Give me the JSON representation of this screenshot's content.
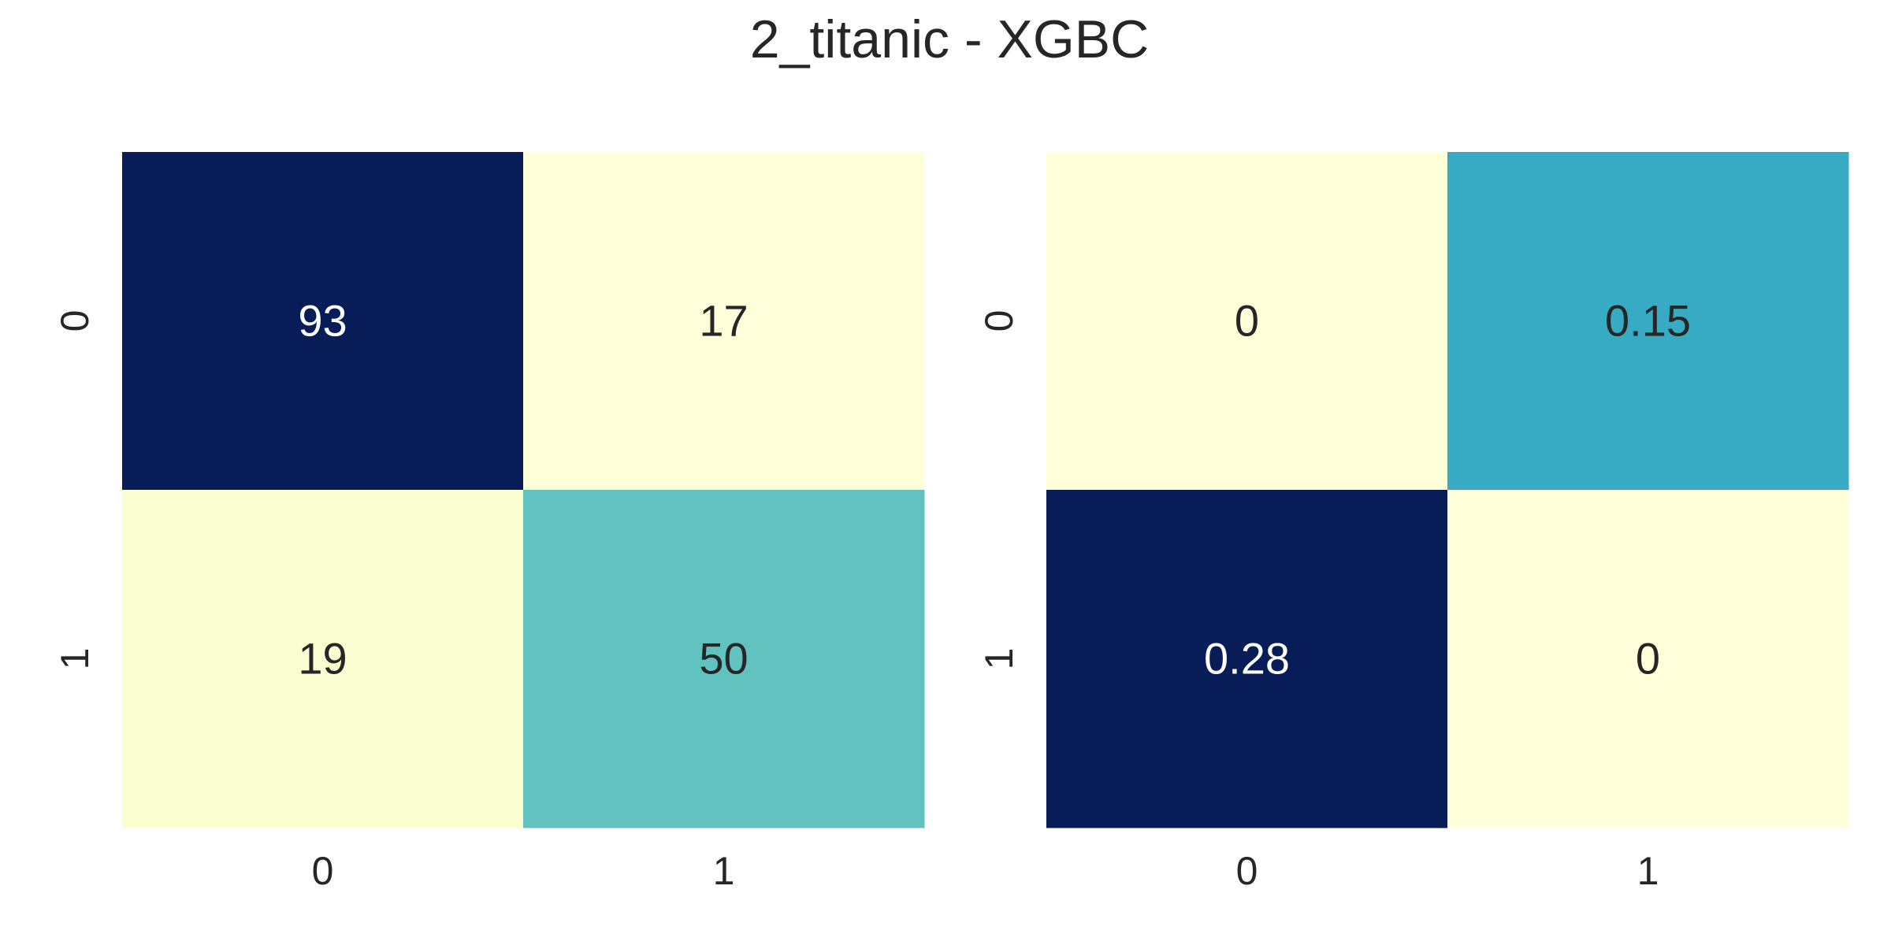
{
  "chart_data": [
    {
      "type": "heatmap",
      "title": "",
      "xlabel": "",
      "ylabel": "",
      "x_categories": [
        "0",
        "1"
      ],
      "y_categories": [
        "0",
        "1"
      ],
      "values": [
        [
          93,
          17
        ],
        [
          19,
          50
        ]
      ],
      "annotations": [
        [
          "93",
          "17"
        ],
        [
          "19",
          "50"
        ]
      ],
      "vmin": 17,
      "vmax": 93,
      "colormap": "YlGnBu",
      "colorbar": false,
      "grid": false
    },
    {
      "type": "heatmap",
      "title": "",
      "xlabel": "",
      "ylabel": "",
      "x_categories": [
        "0",
        "1"
      ],
      "y_categories": [
        "0",
        "1"
      ],
      "values": [
        [
          0,
          0.15
        ],
        [
          0.28,
          0
        ]
      ],
      "annotations": [
        [
          "0",
          "0.15"
        ],
        [
          "0.28",
          "0"
        ]
      ],
      "vmin": 0,
      "vmax": 0.28,
      "colormap": "YlGnBu",
      "colorbar": false,
      "grid": false
    }
  ],
  "figure": {
    "suptitle": "2_titanic - XGBC"
  },
  "colors": {
    "text_dark": "#262626",
    "text_light": "#ffffff"
  }
}
